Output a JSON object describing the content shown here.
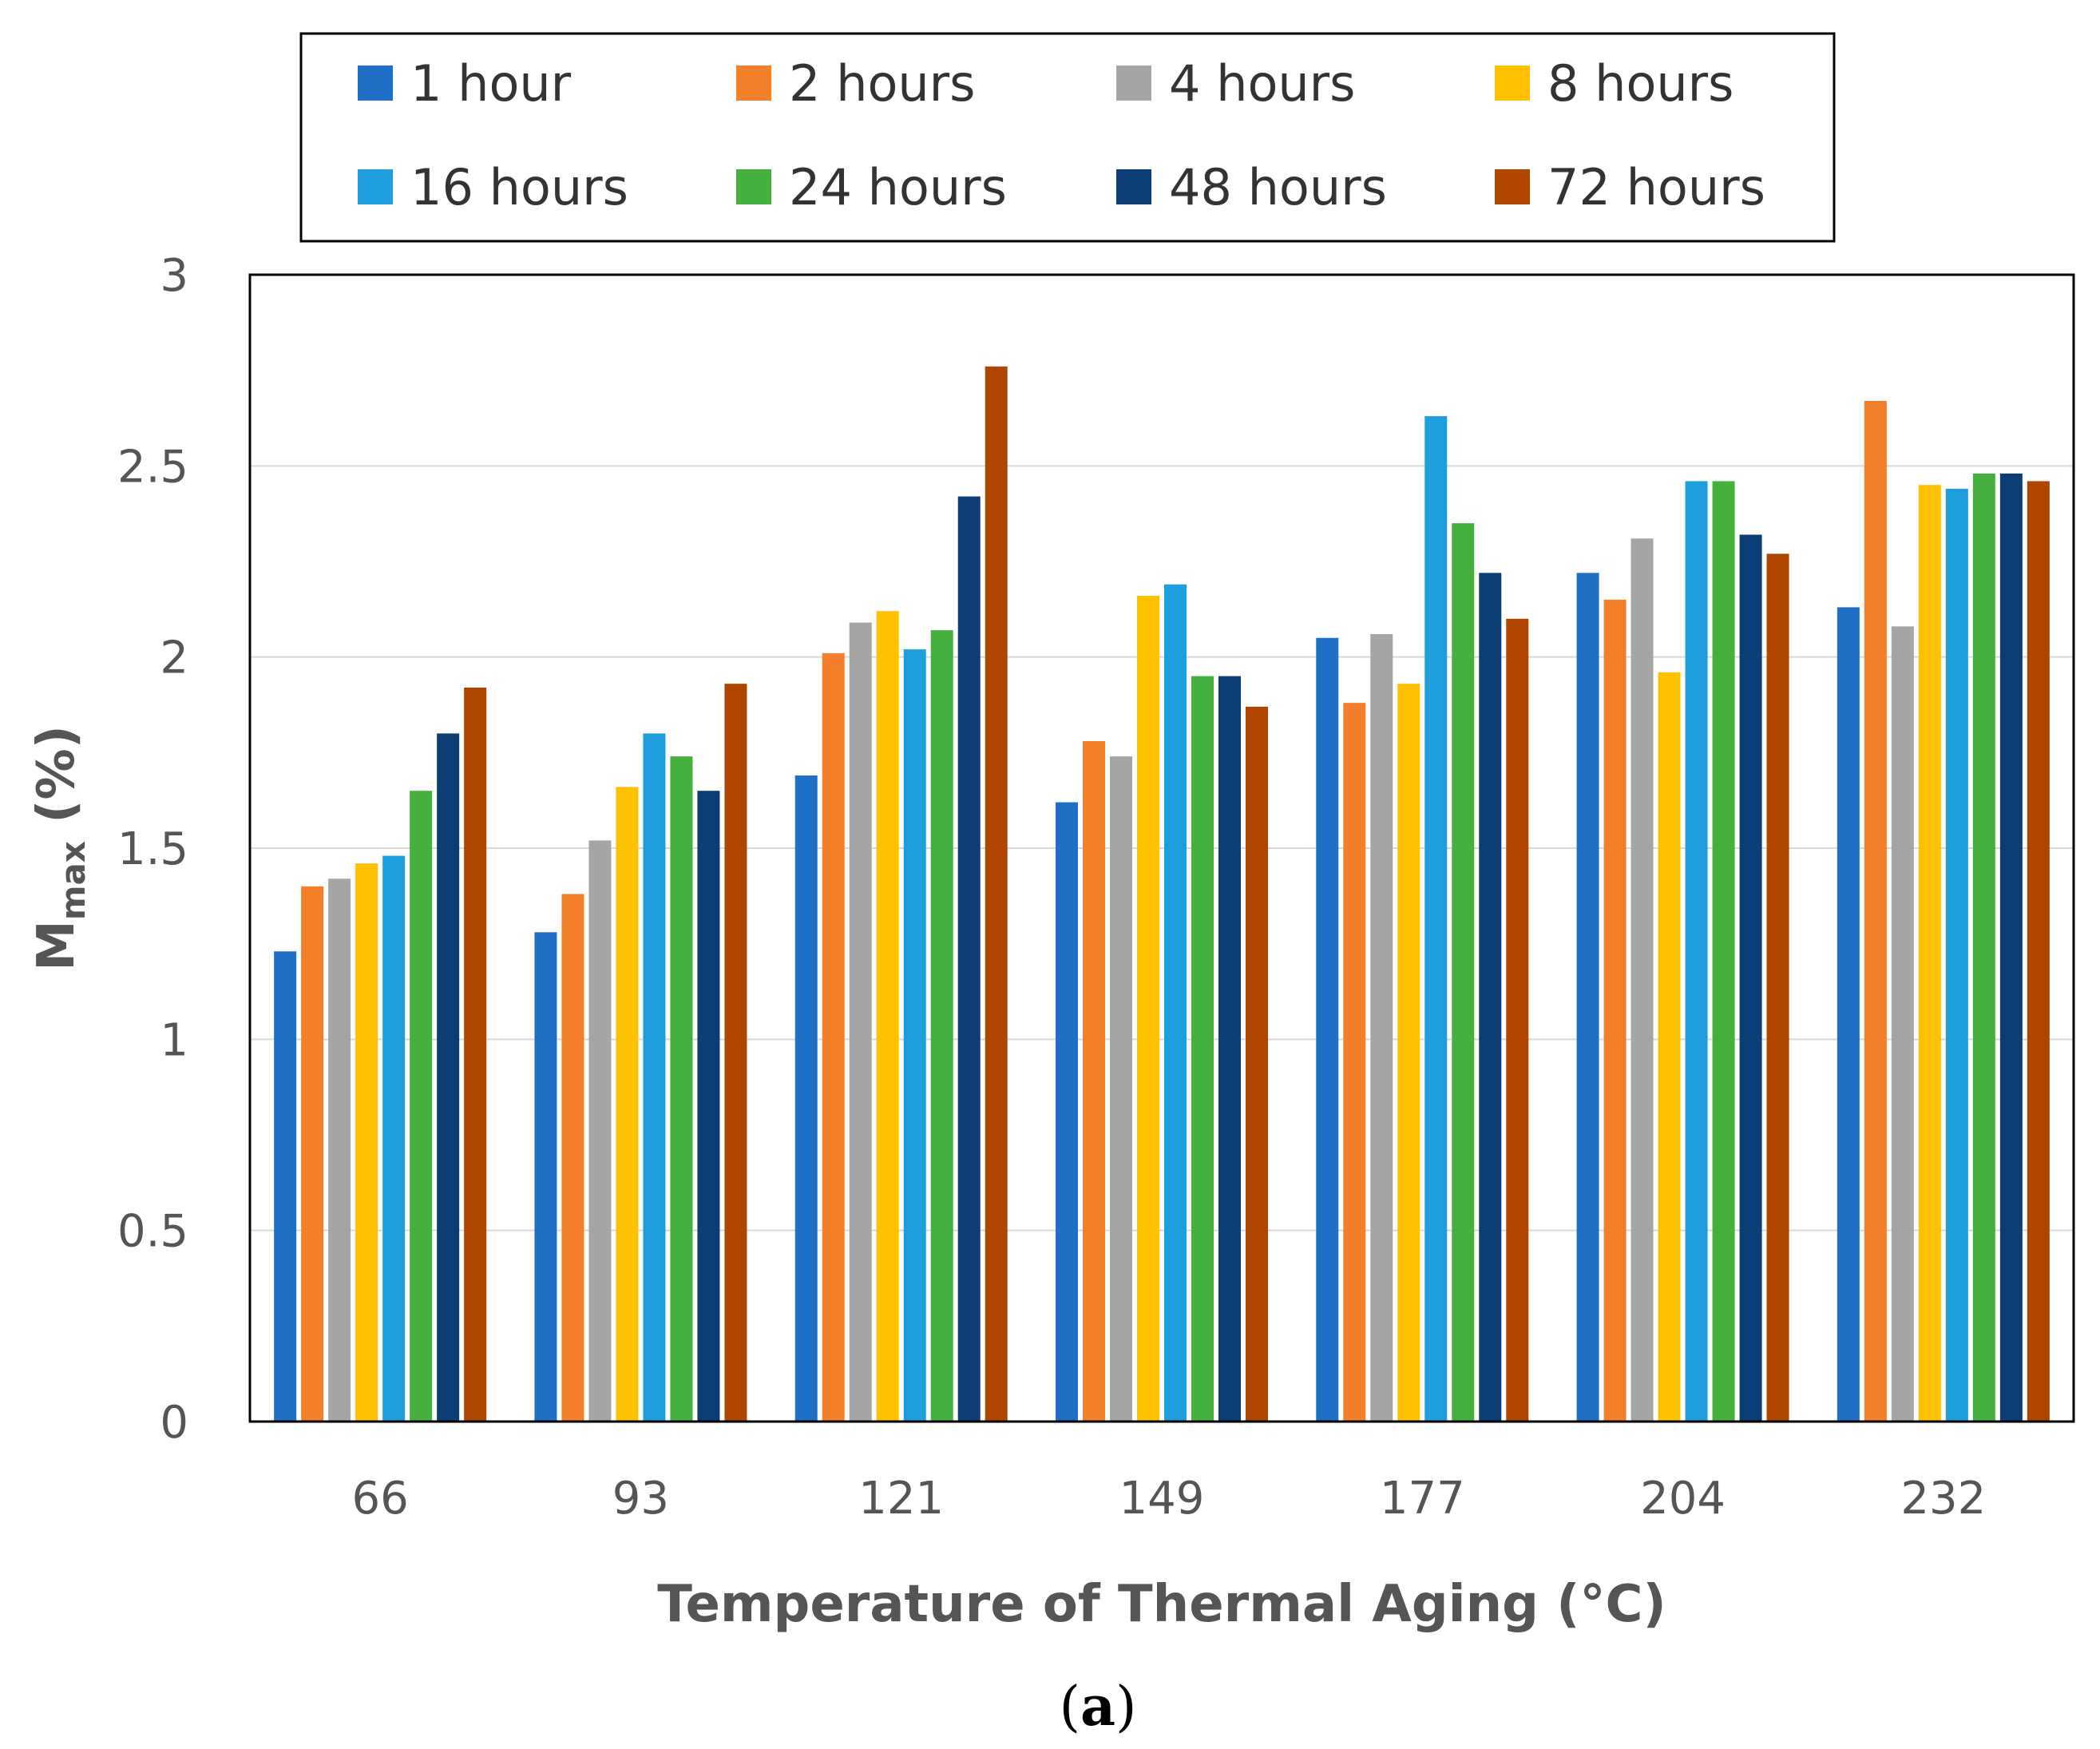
{
  "chart_data": {
    "type": "bar",
    "title": "",
    "xlabel": "Temperature of Thermal Aging (°C)",
    "ylabel_main": "M",
    "ylabel_sub": "max",
    "ylabel_suffix": " (%)",
    "ylim": [
      0,
      3
    ],
    "yticks": [
      "0",
      "0.5",
      "1",
      "1.5",
      "2",
      "2.5",
      "3"
    ],
    "ytick_values": [
      0,
      0.5,
      1,
      1.5,
      2,
      2.5,
      3
    ],
    "grid": true,
    "legend_position": "top",
    "categories": [
      "66",
      "93",
      "121",
      "149",
      "177",
      "204",
      "232"
    ],
    "series": [
      {
        "name": "1 hour",
        "color": "#1f6fc6",
        "values": [
          1.23,
          1.28,
          1.69,
          1.62,
          2.05,
          2.22,
          2.13
        ]
      },
      {
        "name": "2 hours",
        "color": "#f47f2b",
        "values": [
          1.4,
          1.38,
          2.01,
          1.78,
          1.88,
          2.15,
          2.67
        ]
      },
      {
        "name": "4 hours",
        "color": "#a5a5a5",
        "values": [
          1.42,
          1.52,
          2.09,
          1.74,
          2.06,
          2.31,
          2.08
        ]
      },
      {
        "name": "8 hours",
        "color": "#ffc000",
        "values": [
          1.46,
          1.66,
          2.12,
          2.16,
          1.93,
          1.96,
          2.45
        ]
      },
      {
        "name": "16 hours",
        "color": "#1f9ede",
        "values": [
          1.48,
          1.8,
          2.02,
          2.19,
          2.63,
          2.46,
          2.44
        ]
      },
      {
        "name": "24 hours",
        "color": "#46b03e",
        "values": [
          1.65,
          1.74,
          2.07,
          1.95,
          2.35,
          2.46,
          2.48
        ]
      },
      {
        "name": "48 hours",
        "color": "#0c3d74",
        "values": [
          1.8,
          1.65,
          2.42,
          1.95,
          2.22,
          2.32,
          2.48
        ]
      },
      {
        "name": "72 hours",
        "color": "#b04500",
        "values": [
          1.92,
          1.93,
          2.76,
          1.87,
          2.1,
          2.27,
          2.46
        ]
      }
    ]
  },
  "caption": {
    "open": "(",
    "letter": "a",
    "close": ")"
  }
}
